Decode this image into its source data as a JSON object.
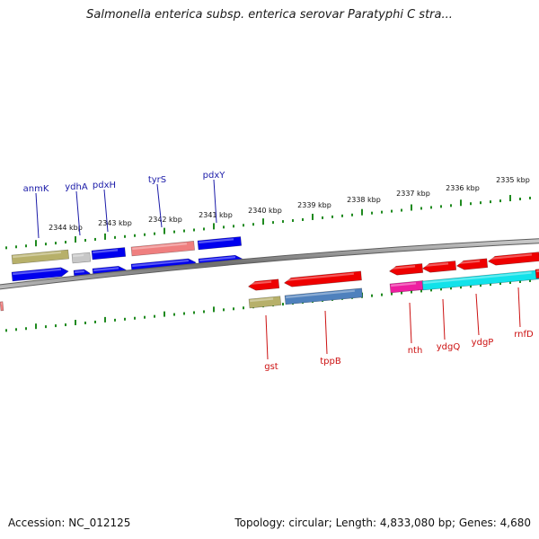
{
  "title": "Salmonella enterica subsp. enterica serovar Paratyphi C stra...",
  "footer": {
    "accession": "Accession: NC_012125",
    "summary": "Topology: circular; Length: 4,833,080 bp; Genes: 4,680"
  },
  "colors": {
    "background": "#ffffff",
    "backbone": "#7a7a7a",
    "tick": "#1f8a1f",
    "upper_label": "#1a1aa8",
    "lower_label": "#cc1111"
  },
  "scale": {
    "tick_labels": [
      "2344 kbp",
      "2343 kbp",
      "2342 kbp",
      "2341 kbp",
      "2340 kbp",
      "2339 kbp",
      "2338 kbp",
      "2337 kbp",
      "2336 kbp",
      "2335 kbp"
    ]
  },
  "genes": {
    "upper_labeled": [
      "anmK",
      "ydhA",
      "pdxH",
      "tyrS",
      "pdxY"
    ],
    "lower_labeled": [
      "gst",
      "tppB",
      "nth",
      "ydgQ",
      "ydgP",
      "rnfD"
    ]
  }
}
